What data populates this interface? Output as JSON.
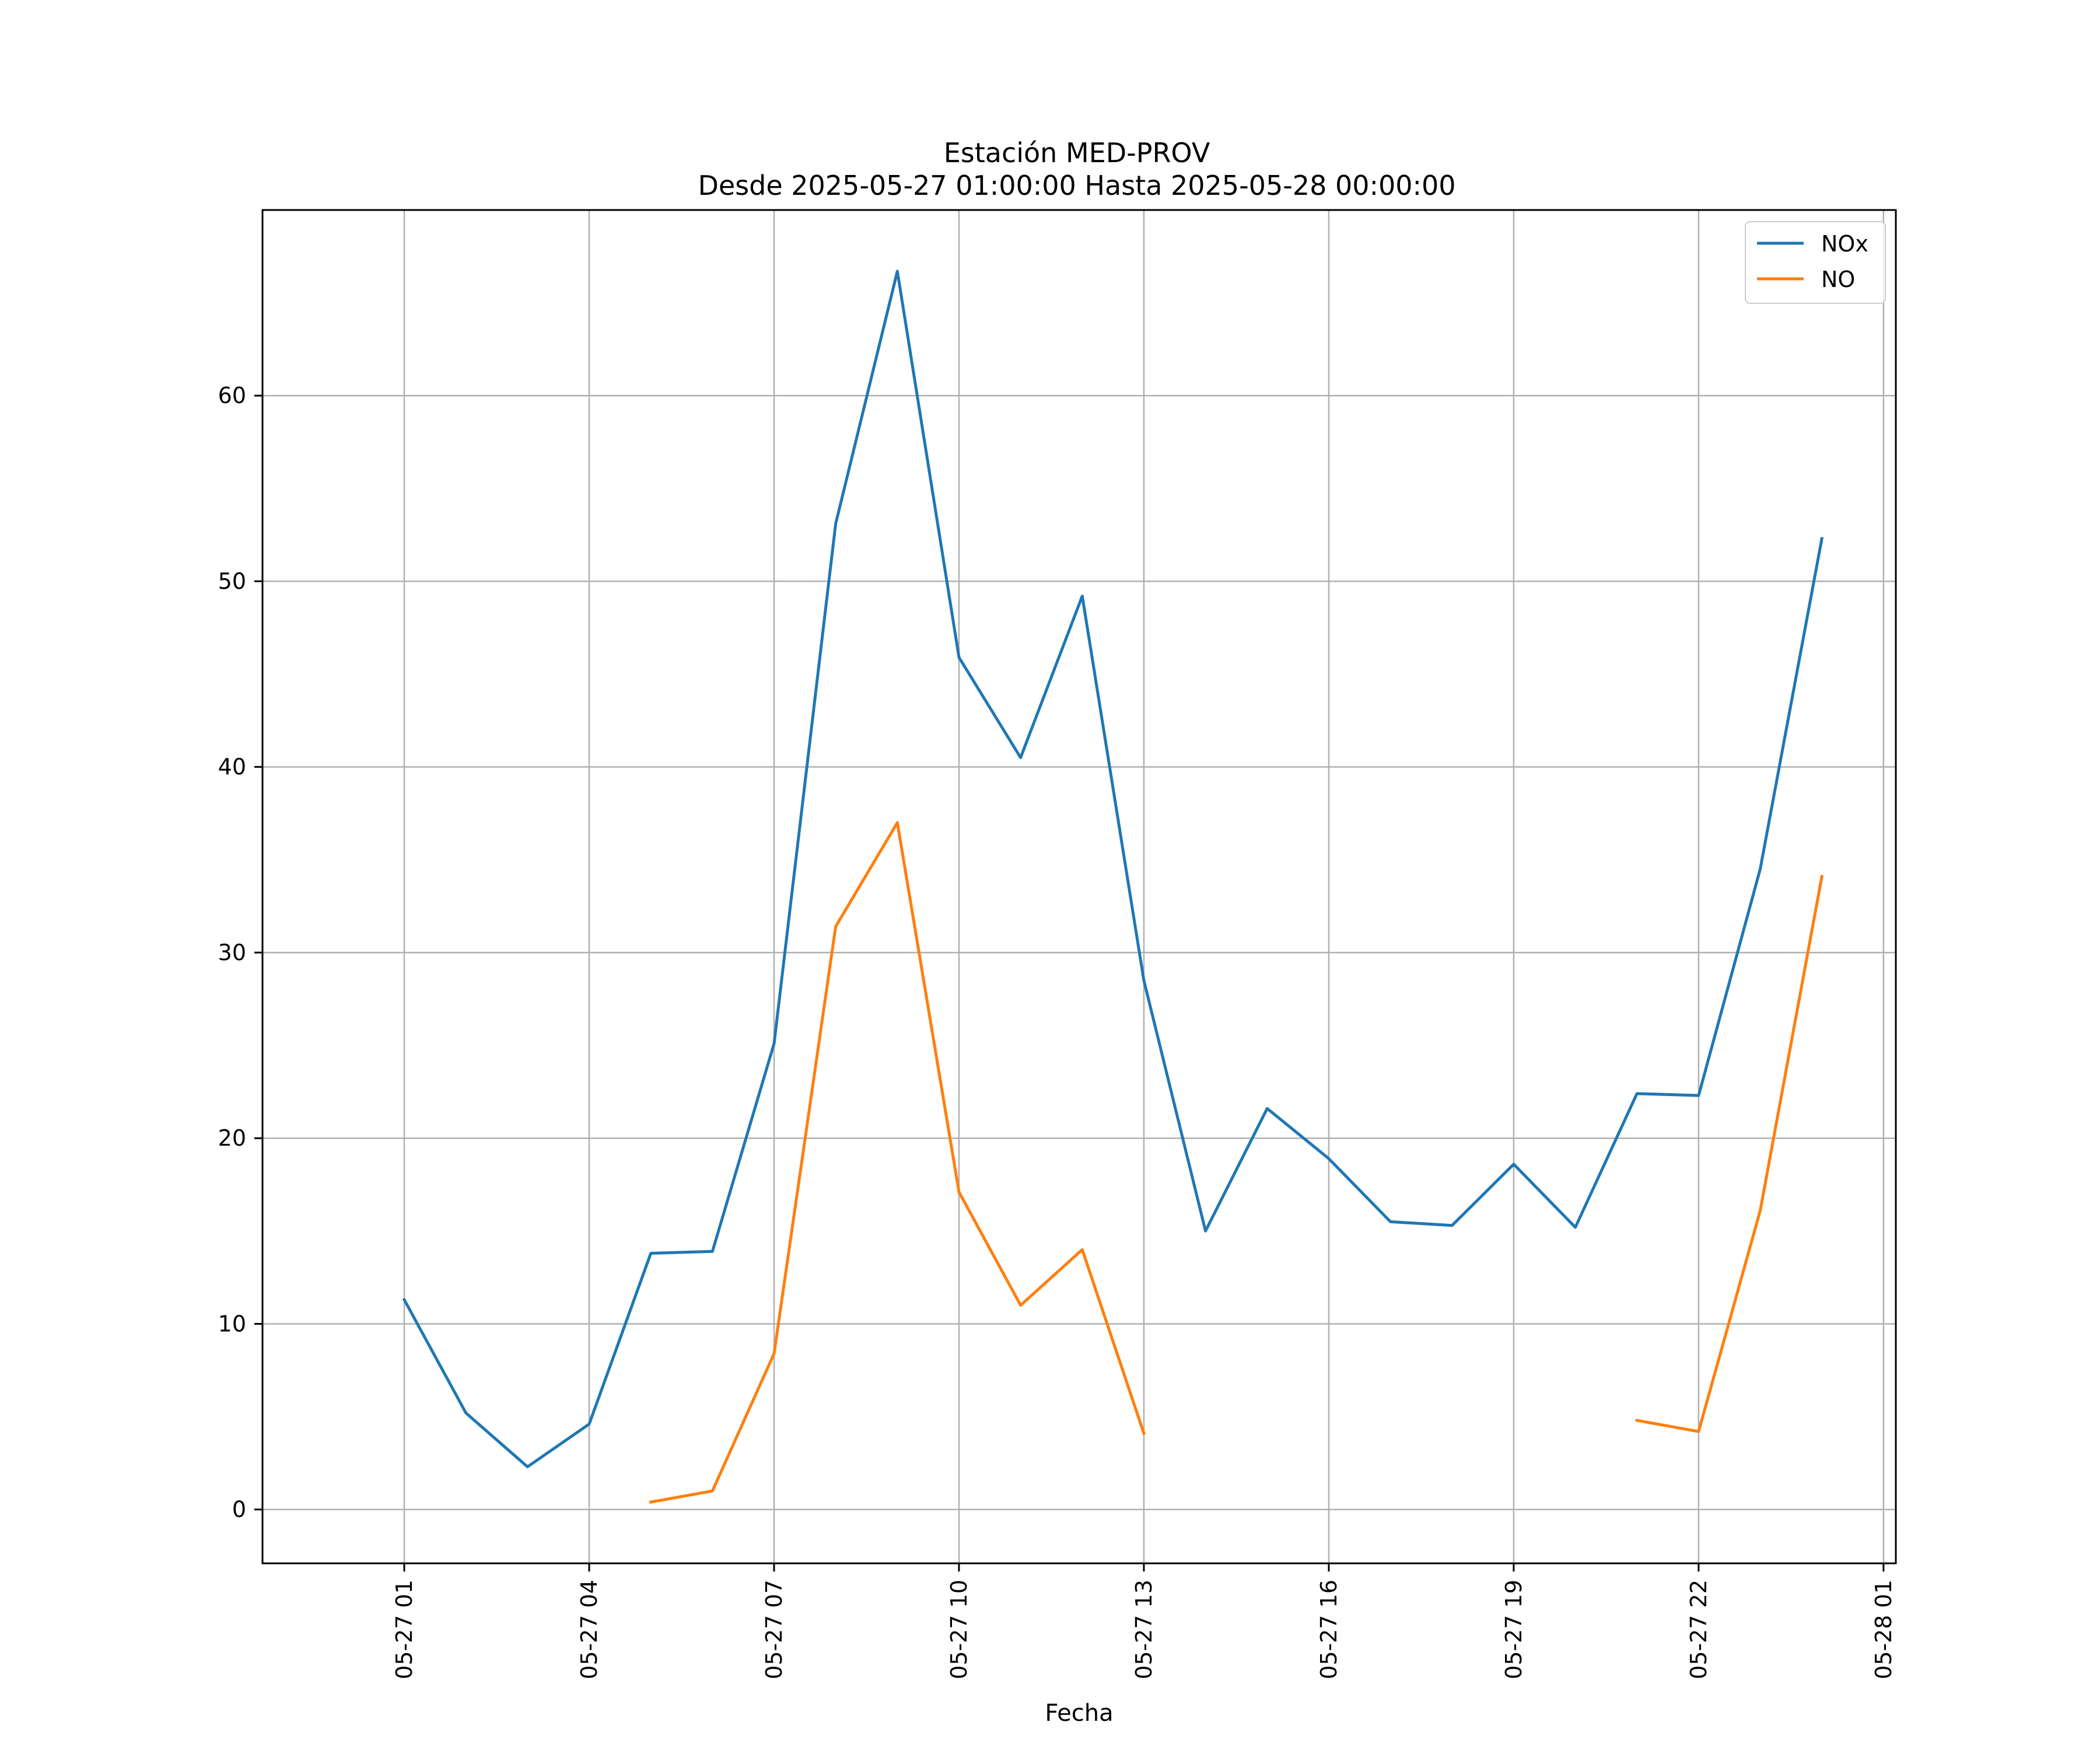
{
  "chart_data": {
    "type": "line",
    "title": "Estación MED-PROV",
    "subtitle": "Desde 2025-05-27 01:00:00 Hasta 2025-05-28 00:00:00",
    "xlabel": "Fecha",
    "ylabel": "",
    "x": [
      "2025-05-27 01:00",
      "2025-05-27 02:00",
      "2025-05-27 03:00",
      "2025-05-27 04:00",
      "2025-05-27 05:00",
      "2025-05-27 06:00",
      "2025-05-27 07:00",
      "2025-05-27 08:00",
      "2025-05-27 09:00",
      "2025-05-27 10:00",
      "2025-05-27 11:00",
      "2025-05-27 12:00",
      "2025-05-27 13:00",
      "2025-05-27 14:00",
      "2025-05-27 15:00",
      "2025-05-27 16:00",
      "2025-05-27 17:00",
      "2025-05-27 18:00",
      "2025-05-27 19:00",
      "2025-05-27 20:00",
      "2025-05-27 21:00",
      "2025-05-27 22:00",
      "2025-05-27 23:00",
      "2025-05-28 00:00"
    ],
    "series": [
      {
        "name": "NOx",
        "color": "#1f77b4",
        "values": [
          11.3,
          5.2,
          2.3,
          4.6,
          13.8,
          13.9,
          25.1,
          53.1,
          66.7,
          45.9,
          40.5,
          49.2,
          28.5,
          15.0,
          21.6,
          18.9,
          15.5,
          15.3,
          18.6,
          15.2,
          22.4,
          22.3,
          34.5,
          52.3
        ]
      },
      {
        "name": "NO",
        "color": "#ff7f0e",
        "values": [
          null,
          null,
          null,
          null,
          0.4,
          1.0,
          8.4,
          31.4,
          37.0,
          17.1,
          11.0,
          14.0,
          4.1,
          null,
          null,
          null,
          null,
          null,
          null,
          null,
          4.8,
          4.2,
          16.1,
          34.1
        ]
      }
    ],
    "xticks": [
      "05-27 01",
      "05-27 04",
      "05-27 07",
      "05-27 10",
      "05-27 13",
      "05-27 16",
      "05-27 19",
      "05-27 22",
      "05-28 01"
    ],
    "yticks": [
      0,
      10,
      20,
      30,
      40,
      50,
      60
    ],
    "xlim": [
      "2025-05-26 22:42",
      "2025-05-28 01:12"
    ],
    "ylim": [
      -2.9,
      70.0
    ],
    "grid": true,
    "legend": "top-right"
  }
}
